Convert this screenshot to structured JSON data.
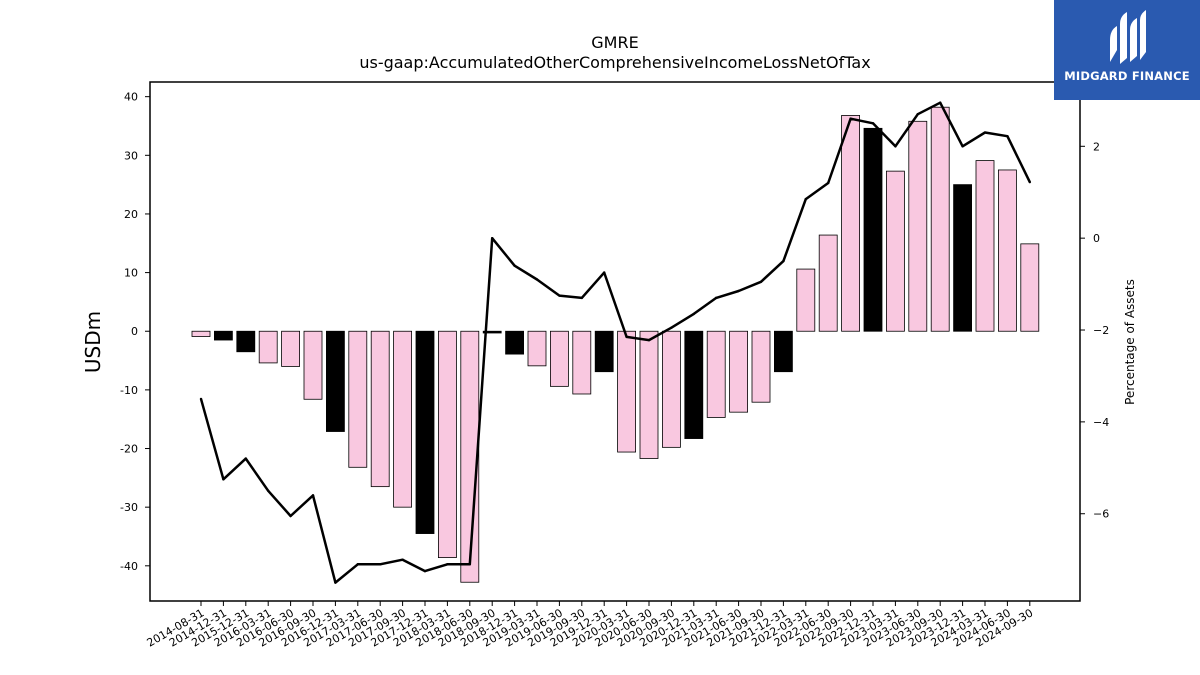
{
  "logo": {
    "text": "MIDGARD FINANCE",
    "color": "#2a5ab0"
  },
  "colors": {
    "bar_pink": "#f9c8e0",
    "bar_black": "#000000",
    "line": "#000000",
    "axis": "#000000"
  },
  "chart_data": {
    "type": "bar",
    "title": "GMRE",
    "subtitle": "us-gaap:AccumulatedOtherComprehensiveIncomeLossNetOfTax",
    "ylabel": "USDm",
    "y2label": "Percentage of Assets",
    "ylim": [
      -46,
      42.5
    ],
    "y2lim": [
      -7.9,
      3.4
    ],
    "yticks": [
      -40,
      -30,
      -20,
      -10,
      0,
      10,
      20,
      30,
      40
    ],
    "y2ticks": [
      -6,
      -4,
      -2,
      0,
      2
    ],
    "grid": false,
    "categories": [
      "2014-08-31",
      "2014-12-31",
      "2015-12-31",
      "2016-03-31",
      "2016-06-30",
      "2016-09-30",
      "2016-12-31",
      "2017-03-31",
      "2017-06-30",
      "2017-09-30",
      "2017-12-31",
      "2018-03-31",
      "2018-06-30",
      "2018-09-30",
      "2018-12-31",
      "2019-03-31",
      "2019-06-30",
      "2019-09-30",
      "2019-12-31",
      "2020-03-31",
      "2020-06-30",
      "2020-09-30",
      "2020-12-31",
      "2021-03-31",
      "2021-06-30",
      "2021-09-30",
      "2021-12-31",
      "2022-03-31",
      "2022-06-30",
      "2022-09-30",
      "2022-12-31",
      "2023-03-31",
      "2023-06-30",
      "2023-09-30",
      "2023-12-31",
      "2024-03-31",
      "2024-06-30",
      "2024-09-30"
    ],
    "series": [
      {
        "kind": "bar",
        "axis": "left",
        "values": [
          -0.9,
          -1.5,
          -3.5,
          -5.4,
          -6.0,
          -11.6,
          -17.1,
          -23.2,
          -26.5,
          -30.0,
          -34.5,
          -38.6,
          -42.8,
          -0.3,
          -3.9,
          -5.9,
          -9.4,
          -10.7,
          -6.9,
          -20.6,
          -21.7,
          -19.8,
          -18.3,
          -14.7,
          -13.8,
          -12.1,
          -6.9,
          10.6,
          16.4,
          36.8,
          34.6,
          27.3,
          35.8,
          38.2,
          25.0,
          29.1,
          27.5,
          14.9
        ],
        "highlight": [
          false,
          true,
          true,
          false,
          false,
          false,
          true,
          false,
          false,
          false,
          true,
          false,
          false,
          true,
          true,
          false,
          false,
          false,
          true,
          false,
          false,
          false,
          true,
          false,
          false,
          false,
          true,
          false,
          false,
          false,
          true,
          false,
          false,
          false,
          true,
          false,
          false,
          false
        ]
      },
      {
        "kind": "line",
        "axis": "right",
        "values": [
          -3.5,
          -5.25,
          -4.8,
          -5.5,
          -6.05,
          -5.6,
          -7.5,
          -7.1,
          -7.1,
          -7.0,
          -7.25,
          -7.1,
          -7.1,
          0.0,
          -0.6,
          -0.9,
          -1.25,
          -1.3,
          -0.75,
          -2.15,
          -2.22,
          -1.95,
          -1.65,
          -1.3,
          -1.15,
          -0.95,
          -0.5,
          0.85,
          1.2,
          2.6,
          2.5,
          2.0,
          2.7,
          2.95,
          2.0,
          2.3,
          2.22,
          1.22
        ]
      }
    ]
  }
}
